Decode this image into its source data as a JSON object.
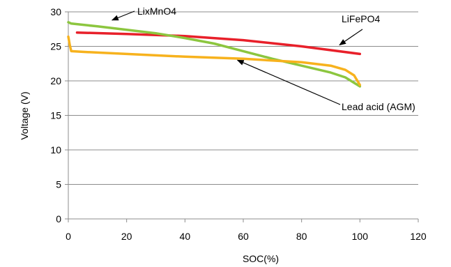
{
  "chart_data": {
    "type": "line",
    "xlabel": "SOC(%)",
    "ylabel": "Voltage (V)",
    "xlim": [
      0,
      120
    ],
    "ylim": [
      0,
      30
    ],
    "xticks": [
      "0",
      "20",
      "40",
      "60",
      "80",
      "100",
      "120"
    ],
    "yticks": [
      "0",
      "5",
      "10",
      "15",
      "20",
      "25",
      "30"
    ],
    "grid": "horizontal",
    "series": [
      {
        "name": "LiFePO4",
        "color": "#e8202a",
        "points": [
          [
            3,
            27.0
          ],
          [
            20,
            26.8
          ],
          [
            40,
            26.5
          ],
          [
            60,
            25.9
          ],
          [
            80,
            25.0
          ],
          [
            100,
            23.9
          ]
        ]
      },
      {
        "name": "LixMnO4",
        "color": "#8cc63f",
        "points": [
          [
            0,
            28.5
          ],
          [
            1,
            28.3
          ],
          [
            10,
            27.9
          ],
          [
            20,
            27.4
          ],
          [
            30,
            26.9
          ],
          [
            40,
            26.2
          ],
          [
            50,
            25.4
          ],
          [
            60,
            24.3
          ],
          [
            70,
            23.2
          ],
          [
            80,
            22.2
          ],
          [
            90,
            21.2
          ],
          [
            95,
            20.5
          ],
          [
            100,
            19.2
          ]
        ]
      },
      {
        "name": "Lead acid (AGM)",
        "color": "#f7b21d",
        "points": [
          [
            0,
            26.4
          ],
          [
            0.5,
            25.2
          ],
          [
            1,
            24.3
          ],
          [
            5,
            24.2
          ],
          [
            20,
            23.9
          ],
          [
            40,
            23.5
          ],
          [
            60,
            23.2
          ],
          [
            80,
            22.7
          ],
          [
            90,
            22.2
          ],
          [
            95,
            21.6
          ],
          [
            98,
            20.8
          ],
          [
            100,
            19.4
          ]
        ]
      }
    ],
    "annotations": [
      {
        "text": "LixMnO4",
        "arrow_to": [
          15,
          28.8
        ]
      },
      {
        "text": "LiFePO4",
        "arrow_to": [
          93,
          25.2
        ]
      },
      {
        "text": "Lead acid (AGM)",
        "arrow_to": [
          58,
          23.0
        ]
      }
    ]
  }
}
